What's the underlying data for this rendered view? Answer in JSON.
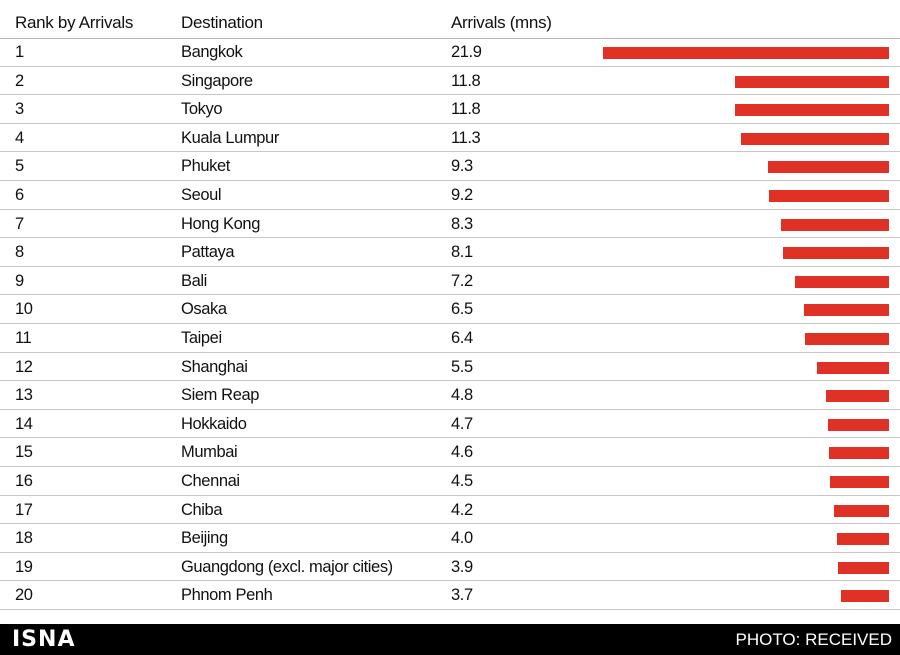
{
  "chart_data": {
    "type": "bar",
    "orientation": "horizontal",
    "columns": [
      "Rank by Arrivals",
      "Destination",
      "Arrivals (mns)"
    ],
    "ranks": [
      "1",
      "2",
      "3",
      "4",
      "5",
      "6",
      "7",
      "8",
      "9",
      "10",
      "11",
      "12",
      "13",
      "14",
      "15",
      "16",
      "17",
      "18",
      "19",
      "20"
    ],
    "categories": [
      "Bangkok",
      "Singapore",
      "Tokyo",
      "Kuala Lumpur",
      "Phuket",
      "Seoul",
      "Hong Kong",
      "Pattaya",
      "Bali",
      "Osaka",
      "Taipei",
      "Shanghai",
      "Siem Reap",
      "Hokkaido",
      "Mumbai",
      "Chennai",
      "Chiba",
      "Beijing",
      "Guangdong (excl. major cities)",
      "Phnom Penh"
    ],
    "values": [
      21.9,
      11.8,
      11.8,
      11.3,
      9.3,
      9.2,
      8.3,
      8.1,
      7.2,
      6.5,
      6.4,
      5.5,
      4.8,
      4.7,
      4.6,
      4.5,
      4.2,
      4.0,
      3.9,
      3.7
    ],
    "value_labels": [
      "21.9",
      "11.8",
      "11.8",
      "11.3",
      "9.3",
      "9.2",
      "8.3",
      "8.1",
      "7.2",
      "6.5",
      "6.4",
      "5.5",
      "4.8",
      "4.7",
      "4.6",
      "4.5",
      "4.2",
      "4.0",
      "3.9",
      "3.7"
    ],
    "bar_color": "#e03127",
    "xlim": [
      0,
      21.9
    ]
  },
  "footer": {
    "brand": "ISNA",
    "credit": "PHOTO: RECEIVED"
  }
}
